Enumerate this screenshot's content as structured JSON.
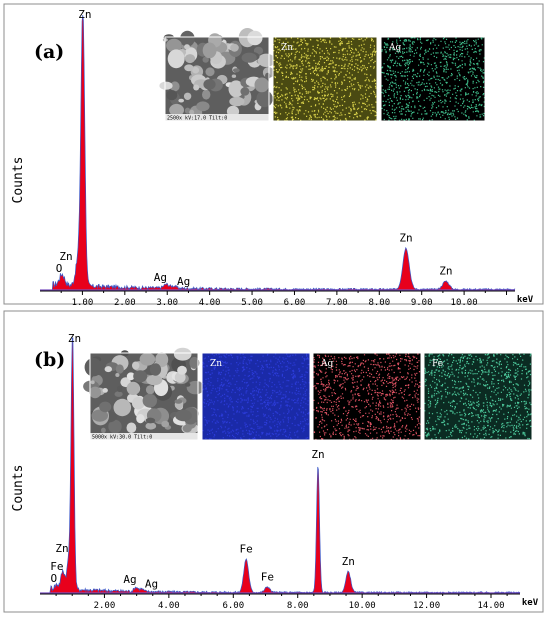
{
  "chart_data": [
    {
      "type": "line",
      "panel_label": "(a)",
      "ylabel": "Counts",
      "x_unit": "keV",
      "xlim": [
        0,
        11.2
      ],
      "ylim": [
        0,
        1000
      ],
      "x_ticks": [
        "1.00",
        "2.00",
        "3.00",
        "4.00",
        "5.00",
        "6.00",
        "7.00",
        "8.00",
        "9.00",
        "10.00"
      ],
      "peaks": [
        {
          "element": "O",
          "energy": 0.52,
          "height": 40
        },
        {
          "element": "Zn",
          "energy": 1.01,
          "height": 1000,
          "label_pos": "top"
        },
        {
          "element": "Zn",
          "energy": 0.9,
          "height": 95,
          "label_pos": "side"
        },
        {
          "element": "Ag",
          "energy": 2.98,
          "height": 14
        },
        {
          "element": "Ag",
          "energy": 3.15,
          "height": 8
        },
        {
          "element": "Zn",
          "energy": 8.63,
          "height": 150
        },
        {
          "element": "Zn",
          "energy": 9.57,
          "height": 30
        }
      ],
      "insets": [
        {
          "type": "sem",
          "label": "",
          "caption": "2500x   kV:17.0  Tilt:0",
          "color": "#7a7a7a"
        },
        {
          "type": "map",
          "label": "Zn",
          "color": "#d9d24a",
          "bg": "#4a4a12"
        },
        {
          "type": "map",
          "label": "Ag",
          "color": "#3fbf8c",
          "bg": "#000000"
        }
      ],
      "fill_color": "#e8001c",
      "line_color": "#3a58c8",
      "baseline_color": "#7b52c0"
    },
    {
      "type": "line",
      "panel_label": "(b)",
      "ylabel": "Counts",
      "x_unit": "keV",
      "xlim": [
        0,
        14.9
      ],
      "ylim": [
        0,
        1000
      ],
      "x_ticks": [
        "2.00",
        "4.00",
        "6.00",
        "8.00",
        "10.00",
        "12.00",
        "14.00"
      ],
      "peaks": [
        {
          "element": "O",
          "energy": 0.52,
          "height": 15
        },
        {
          "element": "Fe",
          "energy": 0.71,
          "height": 70
        },
        {
          "element": "Zn",
          "energy": 1.01,
          "height": 1000,
          "label_pos": "top"
        },
        {
          "element": "Zn",
          "energy": 0.9,
          "height": 120,
          "label_pos": "side"
        },
        {
          "element": "Ag",
          "energy": 2.98,
          "height": 16
        },
        {
          "element": "Ag",
          "energy": 3.15,
          "height": 10
        },
        {
          "element": "Fe",
          "energy": 6.4,
          "height": 130
        },
        {
          "element": "Fe",
          "energy": 7.06,
          "height": 22
        },
        {
          "element": "Zn",
          "energy": 8.63,
          "height": 500
        },
        {
          "element": "Zn",
          "energy": 9.57,
          "height": 82
        }
      ],
      "insets": [
        {
          "type": "sem",
          "label": "",
          "caption": "5000x   kV:30.0  Tilt:0",
          "color": "#7a7a7a"
        },
        {
          "type": "map",
          "label": "Zn",
          "color": "#2b3bd8",
          "bg": "#1a2aa8"
        },
        {
          "type": "map",
          "label": "Ag",
          "color": "#d85060",
          "bg": "#000000"
        },
        {
          "type": "map",
          "label": "Fe",
          "color": "#4cc79a",
          "bg": "#0b2b22"
        }
      ],
      "fill_color": "#e8001c",
      "line_color": "#3a58c8",
      "baseline_color": "#7b52c0"
    }
  ]
}
